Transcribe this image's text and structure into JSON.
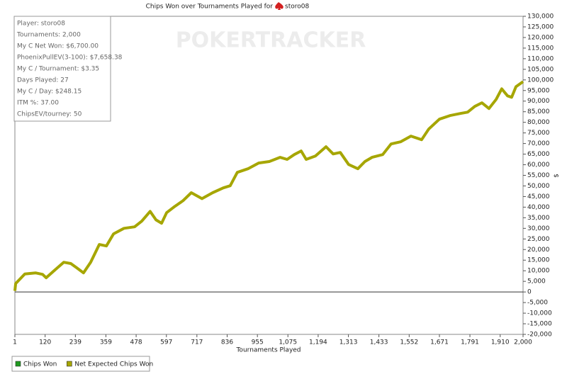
{
  "chart_data": {
    "type": "line",
    "title": "Chips Won over Tournaments Played for",
    "player": "storo08",
    "watermark": "POKERTRACKER",
    "stats": [
      "Player: storo08",
      "Tournaments: 2,000",
      "My C Net Won: $6,700.00",
      "PhoenixPullEV(3-100): $7,658.38",
      "My C / Tournament: $3.35",
      "Days Played: 27",
      "My C / Day: $248.15",
      "ITM %: 37.00",
      "ChipsEV/tourney: 50"
    ],
    "x_label": "Tournaments Played",
    "y_label": "$",
    "legend": [
      {
        "label": "Chips Won",
        "color": "#1f9a1f"
      },
      {
        "label": "Net Expected Chips Won",
        "color": "#a6a600"
      }
    ],
    "grid": false,
    "xlim": [
      1,
      2000
    ],
    "xticks": [
      1,
      120,
      239,
      359,
      478,
      597,
      717,
      836,
      955,
      {
        "value": 1075,
        "label": "1,075"
      },
      {
        "value": 1194,
        "label": "1,194"
      },
      {
        "value": 1313,
        "label": "1,313"
      },
      {
        "value": 1433,
        "label": "1,433"
      },
      {
        "value": 1552,
        "label": "1,552"
      },
      {
        "value": 1671,
        "label": "1,671"
      },
      {
        "value": 1791,
        "label": "1,791"
      },
      {
        "value": 1910,
        "label": "1,910"
      },
      {
        "value": 2000,
        "label": "2,000"
      }
    ],
    "ylim": [
      -20000,
      130000
    ],
    "yticks": [
      {
        "value": -20000,
        "label": "-20,000"
      },
      {
        "value": -15000,
        "label": "-15,000"
      },
      {
        "value": -10000,
        "label": "-10,000"
      },
      {
        "value": -5000,
        "label": "-5,000"
      },
      0,
      {
        "value": 5000,
        "label": "5,000"
      },
      {
        "value": 10000,
        "label": "10,000"
      },
      {
        "value": 15000,
        "label": "15,000"
      },
      {
        "value": 20000,
        "label": "20,000"
      },
      {
        "value": 25000,
        "label": "25,000"
      },
      {
        "value": 30000,
        "label": "30,000"
      },
      {
        "value": 35000,
        "label": "35,000"
      },
      {
        "value": 40000,
        "label": "40,000"
      },
      {
        "value": 45000,
        "label": "45,000"
      },
      {
        "value": 50000,
        "label": "50,000"
      },
      {
        "value": 55000,
        "label": "55,000"
      },
      {
        "value": 60000,
        "label": "60,000"
      },
      {
        "value": 65000,
        "label": "65,000"
      },
      {
        "value": 70000,
        "label": "70,000"
      },
      {
        "value": 75000,
        "label": "75,000"
      },
      {
        "value": 80000,
        "label": "80,000"
      },
      {
        "value": 85000,
        "label": "85,000"
      },
      {
        "value": 90000,
        "label": "90,000"
      },
      {
        "value": 95000,
        "label": "95,000"
      },
      {
        "value": 100000,
        "label": "100,000"
      },
      {
        "value": 105000,
        "label": "105,000"
      },
      {
        "value": 110000,
        "label": "110,000"
      },
      {
        "value": 115000,
        "label": "115,000"
      },
      {
        "value": 120000,
        "label": "120,000"
      },
      {
        "value": 125000,
        "label": "125,000"
      },
      {
        "value": 130000,
        "label": "130,000"
      }
    ],
    "series": [
      {
        "color": "#a6a600",
        "x": [
          1,
          4,
          40,
          82,
          110,
          124,
          152,
          193,
          221,
          244,
          271,
          299,
          333,
          361,
          389,
          430,
          472,
          500,
          533,
          556,
          578,
          598,
          626,
          662,
          695,
          737,
          779,
          821,
          848,
          876,
          918,
          960,
          1002,
          1044,
          1072,
          1100,
          1127,
          1147,
          1183,
          1225,
          1253,
          1281,
          1314,
          1350,
          1378,
          1406,
          1448,
          1481,
          1518,
          1559,
          1601,
          1629,
          1671,
          1713,
          1755,
          1782,
          1810,
          1838,
          1866,
          1894,
          1916,
          1939,
          1955,
          1972,
          2000
        ],
        "values": [
          500,
          4000,
          8500,
          9000,
          8300,
          6700,
          9700,
          14000,
          13400,
          11400,
          9000,
          14000,
          22400,
          21700,
          27400,
          30000,
          30700,
          33400,
          38000,
          34000,
          32400,
          37400,
          40000,
          43000,
          46800,
          44000,
          46800,
          49100,
          50100,
          56400,
          58100,
          60800,
          61500,
          63500,
          62500,
          64800,
          66500,
          62500,
          64100,
          68500,
          65100,
          65800,
          60100,
          58100,
          61500,
          63500,
          64800,
          69800,
          70800,
          73500,
          71800,
          76800,
          81500,
          83200,
          84200,
          84800,
          87500,
          89200,
          86500,
          90800,
          95800,
          92500,
          91800,
          96800,
          99200
        ]
      }
    ]
  }
}
